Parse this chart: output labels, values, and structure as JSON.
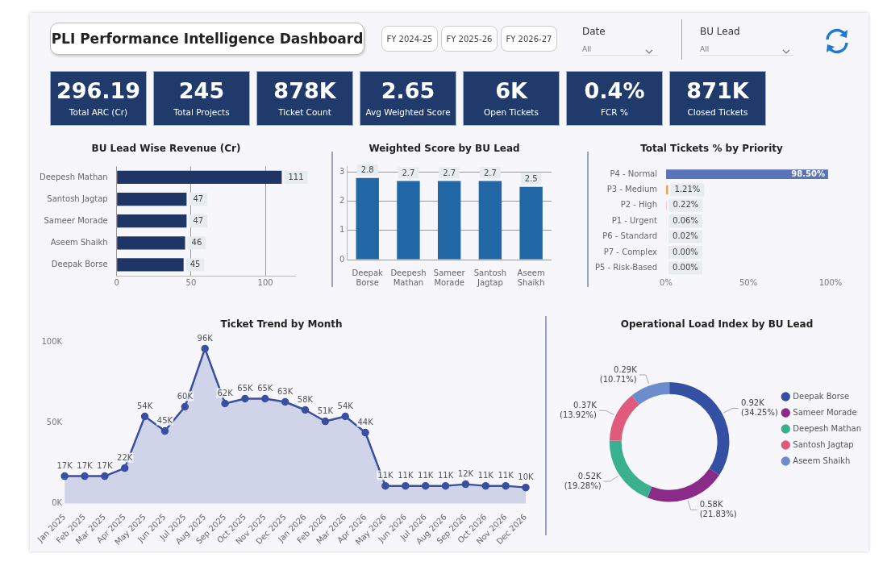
{
  "chart_data": [
    {
      "type": "other",
      "title": "PLI Performance Intelligence Dashboard",
      "annotations": [
        "FY 2024-25",
        "FY 2025-26",
        "FY 2026-27",
        "Date",
        "All",
        "BU Lead",
        "All"
      ]
    },
    {
      "type": "other",
      "categories": [
        "Total ARC (Cr)",
        "Total Projects",
        "Ticket Count",
        "Avg Weighted Score",
        "Open Tickets",
        "FCR %",
        "Closed Tickets"
      ],
      "value_labels": [
        "296.19",
        "245",
        "878K",
        "2.65",
        "6K",
        "0.4%",
        "871K"
      ]
    },
    {
      "type": "bar",
      "orientation": "horizontal",
      "title": "BU Lead Wise Revenue (Cr)",
      "categories": [
        "Deepesh Mathan",
        "Santosh Jagtap",
        "Sameer Morade",
        "Aseem Shaikh",
        "Deepak Borse"
      ],
      "values": [
        111,
        47,
        47,
        46,
        45
      ],
      "color": "#1f3566",
      "xlim": [
        0,
        120
      ],
      "xticks": [
        0,
        50,
        100
      ],
      "grid": "x",
      "data_labels": true
    },
    {
      "type": "bar",
      "title": "Weighted Score by BU Lead",
      "categories": [
        "Deepak Borse",
        "Deepesh Mathan",
        "Sameer Morade",
        "Santosh Jagtap",
        "Aseem Shaikh"
      ],
      "values": [
        2.8,
        2.7,
        2.7,
        2.7,
        2.5
      ],
      "color": "#2166a5",
      "ylim": [
        0,
        3.2
      ],
      "yticks": [
        0,
        1,
        2,
        3
      ],
      "grid": "y",
      "data_labels": true
    },
    {
      "type": "bar",
      "orientation": "horizontal",
      "title": "Total Tickets % by Priority",
      "categories": [
        "P4 - Normal",
        "P3 - Medium",
        "P2 - High",
        "P1 - Urgent",
        "P6 - Standard",
        "P7 - Complex",
        "P5 - Risk-Based"
      ],
      "values": [
        98.5,
        1.21,
        0.22,
        0.06,
        0.02,
        0,
        0
      ],
      "colors": [
        "#5b73b8",
        "#e8a153",
        "#e8a0a0",
        "#d98fa0",
        "#8a90b0",
        "#8a90b0",
        "#8a90b0"
      ],
      "value_labels": [
        "98.50%",
        "1.21%",
        "0.22%",
        "0.06%",
        "0.02%",
        "0.00%",
        "0.00%"
      ],
      "xlim": [
        0,
        100
      ],
      "xticks": [
        {
          "value": 0,
          "label": "0%"
        },
        {
          "value": 50,
          "label": "50%"
        },
        {
          "value": 100,
          "label": "100%"
        }
      ]
    },
    {
      "type": "area",
      "title": "Ticket Trend by Month",
      "categories": [
        "Jan 2025",
        "Feb 2025",
        "Mar 2025",
        "Apr 2025",
        "May 2025",
        "Jun 2025",
        "Jul 2025",
        "Aug 2025",
        "Sep 2025",
        "Oct 2025",
        "Nov 2025",
        "Dec 2025",
        "Jan 2026",
        "Feb 2026",
        "Mar 2026",
        "Apr 2026",
        "May 2026",
        "Jun 2026",
        "Jul 2026",
        "Aug 2026",
        "Sep 2026",
        "Oct 2026",
        "Nov 2026",
        "Dec 2026"
      ],
      "values": [
        17000,
        17000,
        17000,
        22000,
        54000,
        45000,
        60000,
        96000,
        62000,
        65000,
        65000,
        63000,
        58000,
        51000,
        54000,
        44000,
        11000,
        11000,
        11000,
        11000,
        12000,
        11000,
        11000,
        10000
      ],
      "value_labels": [
        "17K",
        "17K",
        "17K",
        "22K",
        "54K",
        "45K",
        "60K",
        "96K",
        "62K",
        "65K",
        "65K",
        "63K",
        "58K",
        "51K",
        "54K",
        "44K",
        "11K",
        "11K",
        "11K",
        "11K",
        "12K",
        "11K",
        "11K",
        "10K"
      ],
      "color": "#3a4fa0",
      "marker": "circle",
      "ylim": [
        0,
        100000
      ],
      "yticks": [
        {
          "value": 0,
          "label": "0K"
        },
        {
          "value": 50000,
          "label": "50K"
        },
        {
          "value": 100000,
          "label": "100K"
        }
      ]
    },
    {
      "type": "donut",
      "title": "Operational Load Index by BU Lead",
      "categories": [
        "Deepak Borse",
        "Sameer Morade",
        "Deepesh Mathan",
        "Santosh Jagtap",
        "Aseem Shaikh"
      ],
      "values": [
        920,
        580,
        520,
        370,
        290
      ],
      "value_labels": [
        "0.92K (34.25%)",
        "0.58K (21.83%)",
        "0.52K (19.28%)",
        "0.37K (13.92%)",
        "0.29K (10.71%)"
      ],
      "colors": [
        "#3350a3",
        "#8a2b8a",
        "#3bb08f",
        "#e05a7e",
        "#6c8ccc"
      ],
      "legend": "right"
    }
  ]
}
